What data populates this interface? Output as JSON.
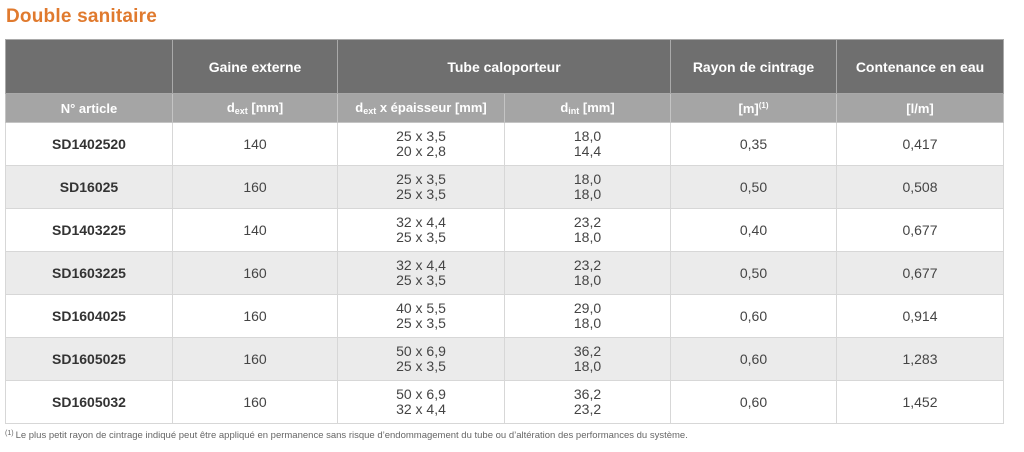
{
  "title": "Double sanitaire",
  "header": {
    "gaine": "Gaine externe",
    "tube": "Tube caloporteur",
    "rayon": "Rayon de cintrage",
    "contenance": "Contenance en eau",
    "article": "N° article",
    "dext_main": "d",
    "dext_sub": "ext",
    "dext_unit": " [mm]",
    "tube_dext_main": "d",
    "tube_dext_sub": "ext",
    "tube_dext_unit": " x épaisseur [mm]",
    "dint_main": "d",
    "dint_sub": "int",
    "dint_unit": " [mm]",
    "rayon_unit": "[m]",
    "rayon_note": "(1)",
    "contenance_unit": "[l/m]"
  },
  "rows": [
    {
      "article": "SD1402520",
      "gaine": "140",
      "tube": [
        "25 x 3,5",
        "20 x 2,8"
      ],
      "dint": [
        "18,0",
        "14,4"
      ],
      "rayon": "0,35",
      "contenance": "0,417"
    },
    {
      "article": "SD16025",
      "gaine": "160",
      "tube": [
        "25 x 3,5",
        "25 x 3,5"
      ],
      "dint": [
        "18,0",
        "18,0"
      ],
      "rayon": "0,50",
      "contenance": "0,508"
    },
    {
      "article": "SD1403225",
      "gaine": "140",
      "tube": [
        "32 x 4,4",
        "25 x 3,5"
      ],
      "dint": [
        "23,2",
        "18,0"
      ],
      "rayon": "0,40",
      "contenance": "0,677"
    },
    {
      "article": "SD1603225",
      "gaine": "160",
      "tube": [
        "32 x 4,4",
        "25 x 3,5"
      ],
      "dint": [
        "23,2",
        "18,0"
      ],
      "rayon": "0,50",
      "contenance": "0,677"
    },
    {
      "article": "SD1604025",
      "gaine": "160",
      "tube": [
        "40 x 5,5",
        "25 x 3,5"
      ],
      "dint": [
        "29,0",
        "18,0"
      ],
      "rayon": "0,60",
      "contenance": "0,914"
    },
    {
      "article": "SD1605025",
      "gaine": "160",
      "tube": [
        "50 x 6,9",
        "25 x 3,5"
      ],
      "dint": [
        "36,2",
        "18,0"
      ],
      "rayon": "0,60",
      "contenance": "1,283"
    },
    {
      "article": "SD1605032",
      "gaine": "160",
      "tube": [
        "50 x 6,9",
        "32 x 4,4"
      ],
      "dint": [
        "36,2",
        "23,2"
      ],
      "rayon": "0,60",
      "contenance": "1,452"
    }
  ],
  "footnote": {
    "marker": "(1)",
    "text": "Le plus petit rayon de cintrage indiqué peut être appliqué en permanence sans risque d’endommagement du tube ou d’altération des performances du système."
  }
}
